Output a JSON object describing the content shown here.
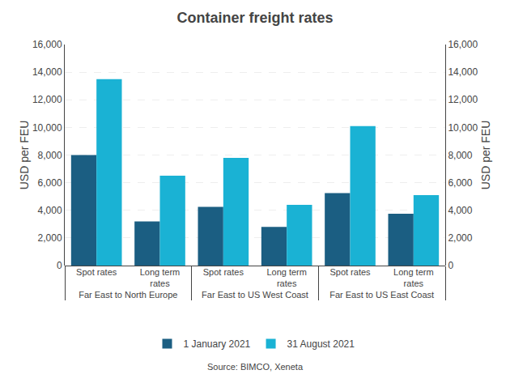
{
  "chart_data": {
    "type": "bar",
    "title": "Container freight rates",
    "ylabel": "USD per FEU",
    "y2label": "USD per FEU",
    "categories": [
      [
        "Far East to North Europe",
        "Spot rates"
      ],
      [
        "Far East to North Europe",
        "Long term\nrates"
      ],
      [
        "Far East to US West Coast",
        "Spot rates"
      ],
      [
        "Far East to US West Coast",
        "Long term\nrates"
      ],
      [
        "Far East to US East Coast",
        "Spot rates"
      ],
      [
        "Far East to US East Coast",
        "Long term\nrates"
      ]
    ],
    "series": [
      {
        "name": "1 January 2021",
        "color": "#1b5e82",
        "values": [
          8000,
          3200,
          4250,
          2800,
          5250,
          3750
        ]
      },
      {
        "name": "31 August 2021",
        "color": "#1ab2d4",
        "values": [
          13500,
          6500,
          7800,
          4400,
          10100,
          5100
        ]
      }
    ],
    "ylim": [
      0,
      16000
    ],
    "yticks": [
      0,
      {
        "value": 2000,
        "label": "2,000"
      },
      {
        "value": 4000,
        "label": "4,000"
      },
      {
        "value": 6000,
        "label": "6,000"
      },
      {
        "value": 8000,
        "label": "8,000"
      },
      {
        "value": 10000,
        "label": "10,000"
      },
      {
        "value": 12000,
        "label": "12,000"
      },
      {
        "value": 14000,
        "label": "14,000"
      },
      {
        "value": 16000,
        "label": "16,000"
      }
    ],
    "y2lim": [
      0,
      16000
    ],
    "y2ticks": [
      0,
      {
        "value": 2000,
        "label": "2,000"
      },
      {
        "value": 4000,
        "label": "4,000"
      },
      {
        "value": 6000,
        "label": "6,000"
      },
      {
        "value": 8000,
        "label": "8,000"
      },
      {
        "value": 10000,
        "label": "10,000"
      },
      {
        "value": 12000,
        "label": "12,000"
      },
      {
        "value": 14000,
        "label": "14,000"
      },
      {
        "value": 16000,
        "label": "16,000"
      }
    ],
    "grid": true,
    "legend": "bottom",
    "annotations": [
      "Source: BIMCO, Xeneta"
    ]
  }
}
